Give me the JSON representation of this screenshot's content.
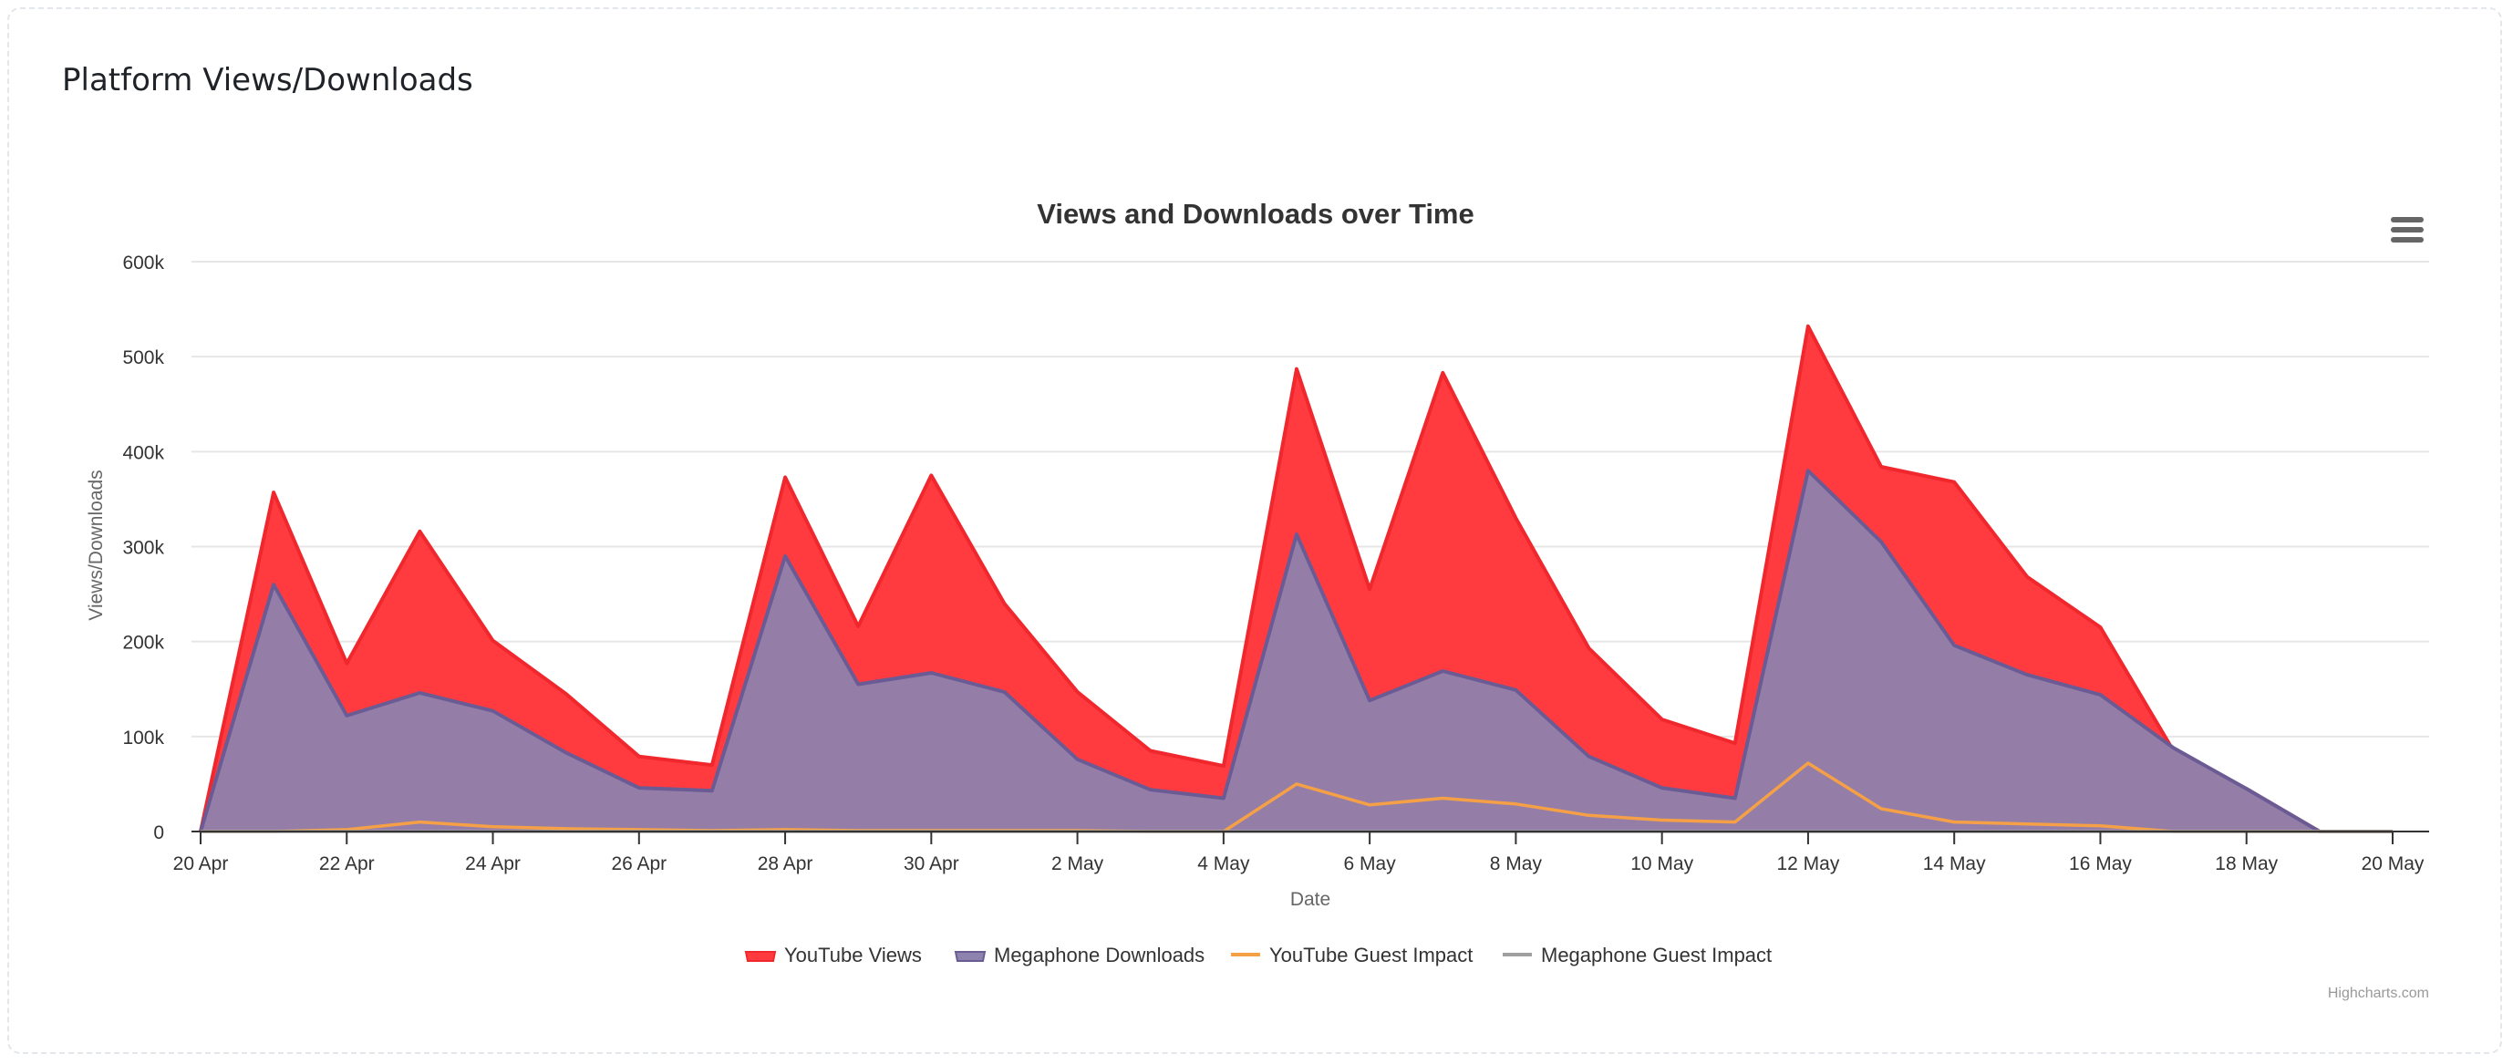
{
  "card": {
    "title": "Platform Views/Downloads"
  },
  "credits": "Highcharts.com",
  "menu_icon": "hamburger-menu-icon",
  "colors": {
    "youtube_views": "#ff3b3f",
    "youtube_views_line": "#f0272d",
    "megaphone_downloads": "#8e82ae",
    "megaphone_downloads_line": "#6b5b95",
    "youtube_guest_impact": "#f5a046",
    "megaphone_guest_impact": "#a0a0a0"
  },
  "chart_data": {
    "type": "area",
    "title": "Views and Downloads over Time",
    "xlabel": "Date",
    "ylabel": "Views/Downloads",
    "ylim": [
      0,
      600000
    ],
    "yticks": [
      0,
      100000,
      200000,
      300000,
      400000,
      500000,
      600000
    ],
    "ytick_labels": [
      "0",
      "100k",
      "200k",
      "300k",
      "400k",
      "500k",
      "600k"
    ],
    "xlim": [
      "2024-04-20",
      "2024-05-20"
    ],
    "xticks": [
      "2024-04-20",
      "2024-04-22",
      "2024-04-24",
      "2024-04-26",
      "2024-04-28",
      "2024-04-30",
      "2024-05-02",
      "2024-05-04",
      "2024-05-06",
      "2024-05-08",
      "2024-05-10",
      "2024-05-12",
      "2024-05-14",
      "2024-05-16",
      "2024-05-18",
      "2024-05-20"
    ],
    "xtick_labels": [
      "20 Apr",
      "22 Apr",
      "24 Apr",
      "26 Apr",
      "28 Apr",
      "30 Apr",
      "2 May",
      "4 May",
      "6 May",
      "8 May",
      "10 May",
      "12 May",
      "14 May",
      "16 May",
      "18 May",
      "20 May"
    ],
    "grid": true,
    "legend_position": "bottom-center",
    "x": [
      "2024-04-20",
      "2024-04-21",
      "2024-04-22",
      "2024-04-23",
      "2024-04-24",
      "2024-04-25",
      "2024-04-26",
      "2024-04-27",
      "2024-04-28",
      "2024-04-29",
      "2024-04-30",
      "2024-05-01",
      "2024-05-02",
      "2024-05-03",
      "2024-05-04",
      "2024-05-05",
      "2024-05-06",
      "2024-05-07",
      "2024-05-08",
      "2024-05-09",
      "2024-05-10",
      "2024-05-11",
      "2024-05-12",
      "2024-05-13",
      "2024-05-14",
      "2024-05-15",
      "2024-05-16",
      "2024-05-17",
      "2024-05-18",
      "2024-05-19",
      "2024-05-20"
    ],
    "series": [
      {
        "name": "YouTube Views",
        "kind": "area",
        "values": [
          0,
          357000,
          177000,
          316000,
          201000,
          145000,
          79000,
          70000,
          373000,
          216000,
          375000,
          240000,
          147000,
          85000,
          69000,
          487000,
          255000,
          483000,
          330000,
          193000,
          118000,
          93000,
          532000,
          384000,
          368000,
          268000,
          215000,
          85000,
          45000,
          0,
          0
        ]
      },
      {
        "name": "Megaphone Downloads",
        "kind": "area",
        "values": [
          0,
          260000,
          122000,
          146000,
          127000,
          83000,
          46000,
          43000,
          290000,
          155000,
          167000,
          147000,
          76000,
          44000,
          35000,
          313000,
          138000,
          169000,
          149000,
          79000,
          46000,
          35000,
          380000,
          305000,
          196000,
          165000,
          144000,
          88000,
          45000,
          0,
          0
        ]
      },
      {
        "name": "YouTube Guest Impact",
        "kind": "line",
        "values": [
          0,
          0,
          2000,
          10000,
          5000,
          3000,
          2000,
          1000,
          2000,
          1000,
          1000,
          1000,
          1000,
          0,
          0,
          50000,
          28000,
          35000,
          29000,
          17000,
          12000,
          10000,
          72000,
          24000,
          10000,
          8000,
          6000,
          0,
          0,
          0,
          0
        ]
      },
      {
        "name": "Megaphone Guest Impact",
        "kind": "line",
        "values": [
          0,
          0,
          0,
          0,
          0,
          0,
          0,
          0,
          0,
          0,
          0,
          0,
          0,
          0,
          0,
          0,
          0,
          0,
          0,
          0,
          0,
          0,
          0,
          0,
          0,
          0,
          0,
          0,
          0,
          0,
          0
        ]
      }
    ]
  }
}
